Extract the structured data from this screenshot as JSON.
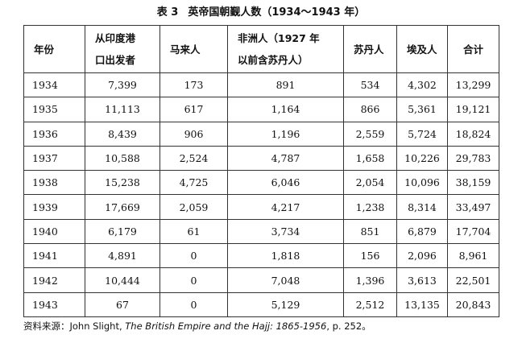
{
  "caption": {
    "number": "表 3",
    "title": "英帝国朝觐人数",
    "years": "（1934～1943 年）"
  },
  "table": {
    "headers": [
      {
        "lines": [
          "年份"
        ]
      },
      {
        "lines": [
          "从印度港",
          "口出发者"
        ]
      },
      {
        "lines": [
          "马来人"
        ]
      },
      {
        "lines": [
          "非洲人（1927 年",
          "以前含苏丹人）"
        ]
      },
      {
        "lines": [
          "苏丹人"
        ]
      },
      {
        "lines": [
          "埃及人"
        ]
      },
      {
        "lines": [
          "合计"
        ]
      }
    ],
    "rows": [
      [
        "1934",
        "7,399",
        "173",
        "891",
        "534",
        "4,302",
        "13,299"
      ],
      [
        "1935",
        "11,113",
        "617",
        "1,164",
        "866",
        "5,361",
        "19,121"
      ],
      [
        "1936",
        "8,439",
        "906",
        "1,196",
        "2,559",
        "5,724",
        "18,824"
      ],
      [
        "1937",
        "10,588",
        "2,524",
        "4,787",
        "1,658",
        "10,226",
        "29,783"
      ],
      [
        "1938",
        "15,238",
        "4,725",
        "6,046",
        "2,054",
        "10,096",
        "38,159"
      ],
      [
        "1939",
        "17,669",
        "2,059",
        "4,217",
        "1,238",
        "8,314",
        "33,497"
      ],
      [
        "1940",
        "6,179",
        "61",
        "3,734",
        "851",
        "6,879",
        "17,704"
      ],
      [
        "1941",
        "4,891",
        "0",
        "1,818",
        "156",
        "2,096",
        "8,961"
      ],
      [
        "1942",
        "10,444",
        "0",
        "7,048",
        "1,396",
        "3,613",
        "22,501"
      ],
      [
        "1943",
        "67",
        "0",
        "5,129",
        "2,512",
        "13,135",
        "20,843"
      ]
    ]
  },
  "source": {
    "prefix": "资料来源：John Slight, ",
    "book": "The British Empire and the Hajj: 1865-1956",
    "suffix": ", p. 252。"
  }
}
